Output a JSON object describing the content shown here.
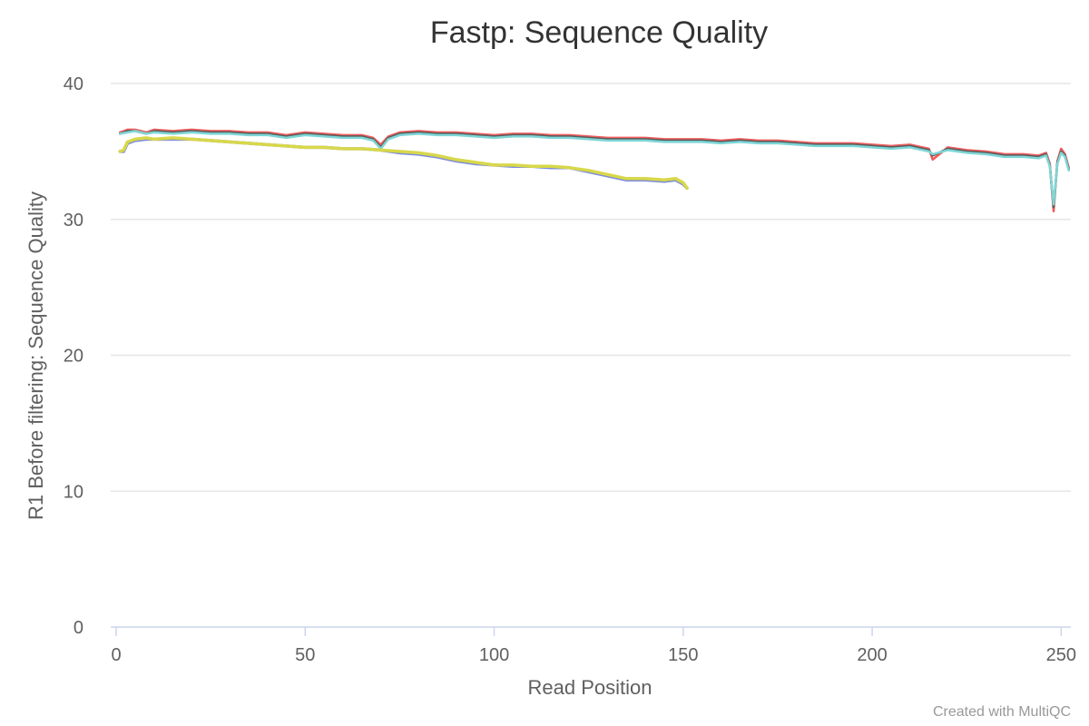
{
  "chart_data": {
    "type": "line",
    "title": "Fastp: Sequence Quality",
    "xlabel": "Read Position",
    "ylabel": "R1 Before filtering: Sequence Quality",
    "xlim": [
      0,
      254
    ],
    "ylim": [
      0,
      40
    ],
    "xticks": [
      0,
      50,
      100,
      150,
      200,
      250
    ],
    "yticks": [
      0,
      10,
      20,
      30,
      40
    ],
    "grid": true,
    "credit": "Created with MultiQC",
    "series": [
      {
        "color": "#f15c5c",
        "x": [
          1,
          3,
          5,
          8,
          10,
          15,
          20,
          25,
          30,
          35,
          40,
          45,
          50,
          55,
          60,
          65,
          68,
          70,
          72,
          75,
          80,
          85,
          90,
          95,
          100,
          105,
          110,
          115,
          120,
          125,
          130,
          135,
          140,
          145,
          150,
          155,
          160,
          165,
          170,
          175,
          180,
          185,
          190,
          195,
          200,
          205,
          210,
          215,
          216,
          220,
          225,
          230,
          235,
          240,
          244,
          246,
          247,
          248,
          249,
          250,
          251,
          252
        ],
        "y": [
          36.4,
          36.6,
          36.6,
          36.4,
          36.6,
          36.5,
          36.6,
          36.5,
          36.5,
          36.4,
          36.4,
          36.2,
          36.4,
          36.3,
          36.2,
          36.2,
          36.0,
          35.5,
          36.1,
          36.4,
          36.5,
          36.4,
          36.4,
          36.3,
          36.2,
          36.3,
          36.3,
          36.2,
          36.2,
          36.1,
          36.0,
          36.0,
          36.0,
          35.9,
          35.9,
          35.9,
          35.8,
          35.9,
          35.8,
          35.8,
          35.7,
          35.6,
          35.6,
          35.6,
          35.5,
          35.4,
          35.5,
          35.2,
          34.4,
          35.3,
          35.1,
          35.0,
          34.8,
          34.8,
          34.7,
          34.9,
          34.1,
          30.6,
          34.3,
          35.2,
          34.8,
          33.8
        ]
      },
      {
        "color": "#5c5c5c",
        "x": [
          1,
          3,
          5,
          8,
          10,
          15,
          20,
          25,
          30,
          35,
          40,
          45,
          50,
          55,
          60,
          65,
          68,
          70,
          72,
          75,
          80,
          85,
          90,
          95,
          100,
          105,
          110,
          115,
          120,
          125,
          130,
          135,
          140,
          145,
          150,
          155,
          160,
          165,
          170,
          175,
          180,
          185,
          190,
          195,
          200,
          205,
          210,
          215,
          216,
          220,
          225,
          230,
          235,
          240,
          244,
          246,
          247,
          248,
          249,
          250,
          251,
          252
        ],
        "y": [
          36.3,
          36.5,
          36.5,
          36.3,
          36.5,
          36.4,
          36.5,
          36.4,
          36.4,
          36.3,
          36.3,
          36.1,
          36.3,
          36.2,
          36.1,
          36.1,
          35.9,
          35.3,
          36.0,
          36.3,
          36.4,
          36.3,
          36.3,
          36.2,
          36.1,
          36.2,
          36.2,
          36.1,
          36.1,
          36.0,
          35.9,
          35.9,
          35.9,
          35.8,
          35.8,
          35.8,
          35.7,
          35.8,
          35.7,
          35.7,
          35.6,
          35.5,
          35.5,
          35.5,
          35.4,
          35.3,
          35.4,
          35.1,
          34.7,
          35.2,
          35.0,
          34.9,
          34.7,
          34.7,
          34.6,
          34.8,
          34.0,
          30.9,
          34.2,
          35.0,
          34.7,
          33.7
        ]
      },
      {
        "color": "#7ed6d6",
        "x": [
          1,
          3,
          5,
          8,
          10,
          15,
          20,
          25,
          30,
          35,
          40,
          45,
          50,
          55,
          60,
          65,
          68,
          70,
          72,
          75,
          80,
          85,
          90,
          95,
          100,
          105,
          110,
          115,
          120,
          125,
          130,
          135,
          140,
          145,
          150,
          155,
          160,
          165,
          170,
          175,
          180,
          185,
          190,
          195,
          200,
          205,
          210,
          215,
          216,
          220,
          225,
          230,
          235,
          240,
          244,
          246,
          247,
          248,
          249,
          250,
          251,
          252
        ],
        "y": [
          36.3,
          36.4,
          36.5,
          36.3,
          36.4,
          36.3,
          36.4,
          36.3,
          36.3,
          36.2,
          36.2,
          36.0,
          36.2,
          36.1,
          36.0,
          36.0,
          35.8,
          35.2,
          35.9,
          36.2,
          36.3,
          36.2,
          36.2,
          36.1,
          36.0,
          36.1,
          36.1,
          36.0,
          36.0,
          35.9,
          35.8,
          35.8,
          35.8,
          35.7,
          35.7,
          35.7,
          35.6,
          35.7,
          35.6,
          35.6,
          35.5,
          35.4,
          35.4,
          35.4,
          35.3,
          35.2,
          35.3,
          35.0,
          34.8,
          35.1,
          34.9,
          34.8,
          34.6,
          34.6,
          34.5,
          34.7,
          33.9,
          31.1,
          34.1,
          34.9,
          34.6,
          33.6
        ]
      },
      {
        "color": "#7c8cde",
        "x": [
          1,
          2,
          3,
          5,
          8,
          10,
          15,
          20,
          25,
          30,
          35,
          40,
          45,
          50,
          55,
          60,
          65,
          70,
          75,
          80,
          85,
          90,
          95,
          100,
          105,
          110,
          115,
          120,
          125,
          130,
          135,
          140,
          145,
          148,
          150,
          151
        ],
        "y": [
          35.0,
          35.0,
          35.6,
          35.8,
          35.9,
          35.9,
          35.9,
          35.9,
          35.8,
          35.7,
          35.6,
          35.5,
          35.4,
          35.3,
          35.3,
          35.2,
          35.2,
          35.1,
          34.9,
          34.8,
          34.6,
          34.3,
          34.1,
          34.0,
          33.9,
          33.9,
          33.8,
          33.8,
          33.5,
          33.2,
          32.9,
          32.9,
          32.8,
          32.9,
          32.6,
          32.3
        ]
      },
      {
        "color": "#d8d84a",
        "x": [
          1,
          2,
          3,
          5,
          8,
          10,
          15,
          20,
          25,
          30,
          35,
          40,
          45,
          50,
          55,
          60,
          65,
          70,
          75,
          80,
          85,
          90,
          95,
          100,
          105,
          110,
          115,
          120,
          125,
          130,
          135,
          140,
          145,
          148,
          150,
          151
        ],
        "y": [
          35.0,
          35.1,
          35.7,
          35.9,
          36.0,
          35.9,
          36.0,
          35.9,
          35.8,
          35.7,
          35.6,
          35.5,
          35.4,
          35.3,
          35.3,
          35.2,
          35.2,
          35.1,
          35.0,
          34.9,
          34.7,
          34.4,
          34.2,
          34.0,
          34.0,
          33.9,
          33.9,
          33.8,
          33.6,
          33.3,
          33.0,
          33.0,
          32.9,
          33.0,
          32.7,
          32.3
        ]
      }
    ]
  }
}
